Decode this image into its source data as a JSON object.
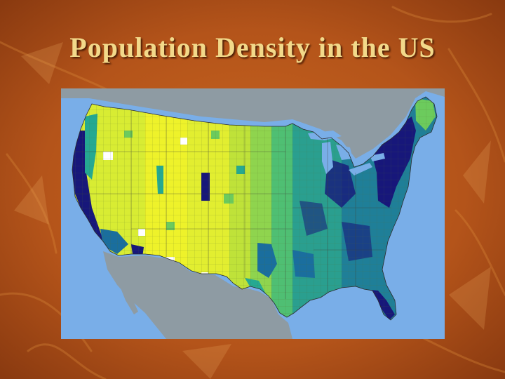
{
  "slide": {
    "title": "Population Density in the US"
  },
  "map": {
    "subject": "US county population density choropleth",
    "colors": {
      "ocean": "#79aee8",
      "land_outside_us": "#8e9ba3",
      "lowest_density": "#ffffff",
      "low_density": "#eef22a",
      "medium_low_density": "#bfe239",
      "medium_density": "#6ccb5d",
      "medium_high_density": "#25a992",
      "high_density": "#1a6e9e",
      "highest_density": "#17177a"
    }
  }
}
